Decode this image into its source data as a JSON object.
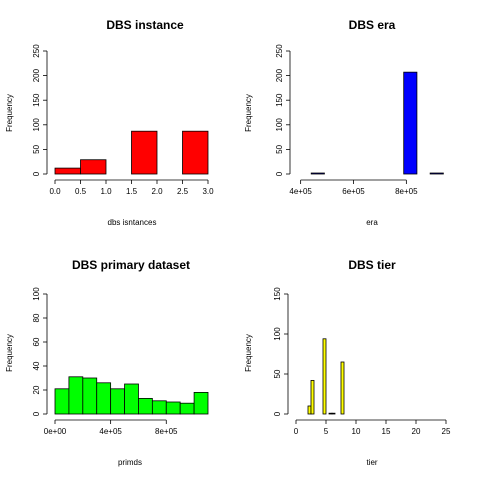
{
  "chart_data": [
    {
      "type": "bar",
      "title": "DBS instance",
      "xlabel": "dbs isntances",
      "ylabel": "Frequency",
      "color": "#ff0000",
      "xlim": [
        0,
        3
      ],
      "ylim": [
        0,
        250
      ],
      "xticks": [
        0,
        0.5,
        1,
        1.5,
        2,
        2.5,
        3
      ],
      "xtick_labels": [
        "0.0",
        "0.5",
        "1.0",
        "1.5",
        "2.0",
        "2.5",
        "3.0"
      ],
      "yticks": [
        0,
        50,
        100,
        150,
        200,
        250
      ],
      "ytick_labels": [
        "0",
        "50",
        "100",
        "150",
        "200",
        "250"
      ],
      "bins": [
        [
          0,
          0.5
        ],
        [
          0.5,
          1
        ],
        [
          1,
          1.5
        ],
        [
          1.5,
          2
        ],
        [
          2,
          2.5
        ],
        [
          2.5,
          3
        ]
      ],
      "values": [
        12,
        29,
        0,
        87,
        0,
        87
      ]
    },
    {
      "type": "bar",
      "title": "DBS era",
      "xlabel": "era",
      "ylabel": "Frequency",
      "color": "#0000ff",
      "xlim": [
        390000,
        950000
      ],
      "ylim": [
        0,
        250
      ],
      "xticks": [
        400000,
        600000,
        800000
      ],
      "xtick_labels": [
        "4e+05",
        "6e+05",
        "8e+05"
      ],
      "yticks": [
        0,
        50,
        100,
        150,
        200,
        250
      ],
      "ytick_labels": [
        "0",
        "50",
        "100",
        "150",
        "200",
        "250"
      ],
      "bins": [
        [
          390000,
          440000
        ],
        [
          440000,
          490000
        ],
        [
          490000,
          540000
        ],
        [
          540000,
          590000
        ],
        [
          590000,
          640000
        ],
        [
          640000,
          690000
        ],
        [
          690000,
          740000
        ],
        [
          740000,
          790000
        ],
        [
          790000,
          840000
        ],
        [
          840000,
          890000
        ],
        [
          890000,
          940000
        ]
      ],
      "values": [
        0,
        2,
        0,
        0,
        0,
        0,
        0,
        0,
        207,
        0,
        2
      ]
    },
    {
      "type": "bar",
      "title": "DBS primary dataset",
      "xlabel": "primds",
      "ylabel": "Frequency",
      "color": "#00ff00",
      "xlim": [
        0,
        1100000
      ],
      "ylim": [
        0,
        100
      ],
      "xticks": [
        0,
        400000,
        800000
      ],
      "xtick_labels": [
        "0e+00",
        "4e+05",
        "8e+05"
      ],
      "yticks": [
        0,
        20,
        40,
        60,
        80,
        100
      ],
      "ytick_labels": [
        "0",
        "20",
        "40",
        "60",
        "80",
        "100"
      ],
      "bins": [
        [
          0,
          100000
        ],
        [
          100000,
          200000
        ],
        [
          200000,
          300000
        ],
        [
          300000,
          400000
        ],
        [
          400000,
          500000
        ],
        [
          500000,
          600000
        ],
        [
          600000,
          700000
        ],
        [
          700000,
          800000
        ],
        [
          800000,
          900000
        ],
        [
          900000,
          1000000
        ],
        [
          1000000,
          1100000
        ]
      ],
      "values": [
        21,
        31,
        30,
        26,
        21,
        25,
        13,
        11,
        10,
        9,
        18
      ]
    },
    {
      "type": "bar",
      "title": "DBS tier",
      "xlabel": "tier",
      "ylabel": "Frequency",
      "color": "#ffff00",
      "xlim": [
        0,
        25
      ],
      "ylim": [
        0,
        150
      ],
      "xticks": [
        0,
        5,
        10,
        15,
        20,
        25
      ],
      "xtick_labels": [
        "0",
        "5",
        "10",
        "15",
        "20",
        "25"
      ],
      "yticks": [
        0,
        50,
        100,
        150
      ],
      "ytick_labels": [
        "0",
        "50",
        "100",
        "150"
      ],
      "bins": [
        [
          2,
          2.5
        ],
        [
          2.5,
          3
        ],
        [
          3,
          3.5
        ],
        [
          3.5,
          4
        ],
        [
          4,
          4.5
        ],
        [
          4.5,
          5
        ],
        [
          5,
          5.5
        ],
        [
          5.5,
          6
        ],
        [
          6,
          6.5
        ],
        [
          6.5,
          7
        ],
        [
          7,
          7.5
        ],
        [
          7.5,
          8
        ]
      ],
      "values": [
        10,
        42,
        0,
        0,
        0,
        94,
        0,
        1,
        1,
        0,
        0,
        65
      ]
    }
  ]
}
